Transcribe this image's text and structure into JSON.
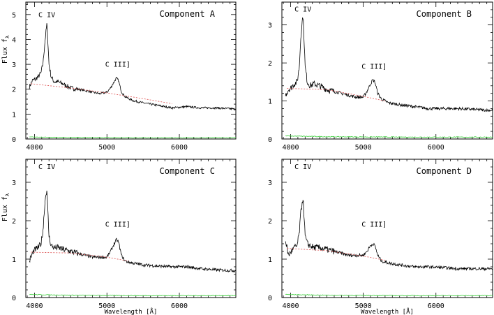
{
  "chart_data": [
    {
      "type": "line",
      "title": "Component A",
      "xlabel": "",
      "ylabel": "Flux f",
      "ylabel_sub": "λ",
      "xlim": [
        3880,
        6780
      ],
      "ylim": [
        0,
        5.5
      ],
      "xticks": [
        4000,
        5000,
        6000
      ],
      "yticks": [
        0,
        1,
        2,
        3,
        4,
        5
      ],
      "annotations": [
        {
          "text": "C IV",
          "x": 4170,
          "y": 4.9
        },
        {
          "text": "C III]",
          "x": 5150,
          "y": 2.9
        }
      ],
      "series": [
        {
          "role": "spectrum",
          "color": "#000000",
          "x": [
            3930,
            3970,
            4010,
            4050,
            4090,
            4120,
            4140,
            4160,
            4170,
            4180,
            4200,
            4230,
            4270,
            4320,
            4400,
            4500,
            4600,
            4700,
            4800,
            4900,
            5000,
            5050,
            5100,
            5130,
            5160,
            5200,
            5250,
            5350,
            5500,
            5700,
            5900,
            6100,
            6300,
            6500,
            6780
          ],
          "y": [
            2.1,
            2.35,
            2.4,
            2.5,
            2.65,
            3.1,
            3.8,
            4.35,
            4.6,
            4.2,
            3.0,
            2.5,
            2.3,
            2.3,
            2.2,
            2.05,
            2.0,
            1.95,
            1.88,
            1.82,
            1.88,
            2.05,
            2.3,
            2.45,
            2.35,
            1.9,
            1.7,
            1.55,
            1.45,
            1.35,
            1.25,
            1.3,
            1.25,
            1.25,
            1.2
          ]
        },
        {
          "role": "continuum",
          "color": "#e06060",
          "dash": true,
          "x": [
            3950,
            4500,
            5000,
            5500,
            5900
          ],
          "y": [
            2.22,
            2.05,
            1.85,
            1.62,
            1.42
          ]
        },
        {
          "role": "error",
          "color": "#33cc33",
          "x": [
            3930,
            4500,
            5500,
            6780
          ],
          "y": [
            0.08,
            0.06,
            0.05,
            0.05
          ]
        }
      ]
    },
    {
      "type": "line",
      "title": "Component B",
      "xlabel": "",
      "ylabel": "",
      "xlim": [
        3880,
        6780
      ],
      "ylim": [
        0,
        3.6
      ],
      "xticks": [
        4000,
        5000,
        6000
      ],
      "yticks": [
        0,
        1,
        2,
        3
      ],
      "annotations": [
        {
          "text": "C IV",
          "x": 4170,
          "y": 3.35
        },
        {
          "text": "C III]",
          "x": 5150,
          "y": 1.85
        }
      ],
      "series": [
        {
          "role": "spectrum",
          "color": "#000000",
          "x": [
            3930,
            3970,
            4010,
            4050,
            4090,
            4120,
            4140,
            4160,
            4170,
            4180,
            4200,
            4230,
            4270,
            4320,
            4400,
            4500,
            4600,
            4700,
            4800,
            4900,
            5000,
            5050,
            5100,
            5130,
            5160,
            5200,
            5250,
            5350,
            5500,
            5700,
            5900,
            6100,
            6300,
            6500,
            6780
          ],
          "y": [
            1.15,
            1.3,
            1.35,
            1.45,
            1.5,
            1.9,
            2.7,
            3.1,
            3.25,
            2.9,
            1.9,
            1.5,
            1.4,
            1.45,
            1.4,
            1.3,
            1.25,
            1.2,
            1.15,
            1.1,
            1.1,
            1.25,
            1.45,
            1.55,
            1.5,
            1.2,
            1.05,
            0.95,
            0.9,
            0.85,
            0.8,
            0.8,
            0.8,
            0.78,
            0.75
          ]
        },
        {
          "role": "continuum",
          "color": "#e06060",
          "dash": true,
          "x": [
            3950,
            4500,
            5000,
            5300
          ],
          "y": [
            1.33,
            1.3,
            1.12,
            1.0
          ]
        },
        {
          "role": "error",
          "color": "#33cc33",
          "x": [
            3930,
            4500,
            5500,
            6780
          ],
          "y": [
            0.08,
            0.06,
            0.05,
            0.05
          ]
        }
      ]
    },
    {
      "type": "line",
      "title": "Component C",
      "xlabel": "",
      "ylabel": "Flux f",
      "ylabel_sub": "λ",
      "xlim": [
        3880,
        6780
      ],
      "ylim": [
        0,
        3.6
      ],
      "xticks": [
        4000,
        5000,
        6000
      ],
      "yticks": [
        0,
        1,
        2,
        3
      ],
      "annotations": [
        {
          "text": "C IV",
          "x": 4170,
          "y": 3.35
        },
        {
          "text": "C III]",
          "x": 5150,
          "y": 1.85
        }
      ],
      "series": [
        {
          "role": "spectrum",
          "color": "#000000",
          "x": [
            3930,
            3970,
            4010,
            4050,
            4090,
            4120,
            4140,
            4160,
            4170,
            4180,
            4200,
            4230,
            4270,
            4320,
            4400,
            4500,
            4600,
            4700,
            4800,
            4900,
            5000,
            5050,
            5100,
            5130,
            5160,
            5200,
            5250,
            5350,
            5500,
            5700,
            5900,
            6100,
            6300,
            6500,
            6780
          ],
          "y": [
            0.95,
            1.15,
            1.25,
            1.3,
            1.4,
            1.8,
            2.4,
            2.75,
            2.8,
            2.4,
            1.6,
            1.35,
            1.3,
            1.3,
            1.25,
            1.2,
            1.15,
            1.1,
            1.05,
            1.05,
            1.05,
            1.2,
            1.4,
            1.5,
            1.45,
            1.1,
            0.95,
            0.9,
            0.85,
            0.82,
            0.8,
            0.8,
            0.75,
            0.72,
            0.7
          ]
        },
        {
          "role": "continuum",
          "color": "#e06060",
          "dash": true,
          "x": [
            3950,
            4500,
            5000,
            5300
          ],
          "y": [
            1.18,
            1.16,
            1.05,
            0.95
          ]
        },
        {
          "role": "error",
          "color": "#33cc33",
          "x": [
            3930,
            4500,
            5500,
            6780
          ],
          "y": [
            0.08,
            0.06,
            0.05,
            0.05
          ]
        }
      ]
    },
    {
      "type": "line",
      "title": "Component D",
      "xlabel": "Wavelength [Å]",
      "ylabel": "",
      "xlim": [
        3880,
        6780
      ],
      "ylim": [
        0,
        3.6
      ],
      "xticks": [
        4000,
        5000,
        6000
      ],
      "yticks": [
        0,
        1,
        2,
        3
      ],
      "annotations": [
        {
          "text": "C IV",
          "x": 4170,
          "y": 3.35
        },
        {
          "text": "C III]",
          "x": 5150,
          "y": 1.85
        }
      ],
      "series": [
        {
          "role": "spectrum",
          "color": "#000000",
          "x": [
            3930,
            3970,
            4010,
            4050,
            4090,
            4120,
            4140,
            4160,
            4170,
            4180,
            4200,
            4230,
            4270,
            4320,
            4400,
            4500,
            4600,
            4700,
            4800,
            4900,
            5000,
            5050,
            5100,
            5130,
            5160,
            5200,
            5250,
            5350,
            5500,
            5700,
            5900,
            6100,
            6300,
            6500,
            6780
          ],
          "y": [
            1.5,
            1.1,
            1.2,
            1.3,
            1.35,
            1.7,
            2.2,
            2.5,
            2.6,
            2.3,
            1.6,
            1.4,
            1.35,
            1.3,
            1.3,
            1.25,
            1.2,
            1.15,
            1.1,
            1.1,
            1.1,
            1.2,
            1.35,
            1.4,
            1.35,
            1.1,
            0.95,
            0.9,
            0.85,
            0.8,
            0.8,
            0.78,
            0.75,
            0.75,
            0.75
          ]
        },
        {
          "role": "continuum",
          "color": "#e06060",
          "dash": true,
          "x": [
            3950,
            4500,
            5000,
            5300
          ],
          "y": [
            1.28,
            1.22,
            1.08,
            0.97
          ]
        },
        {
          "role": "error",
          "color": "#33cc33",
          "x": [
            3930,
            4500,
            5500,
            6780
          ],
          "y": [
            0.08,
            0.06,
            0.05,
            0.05
          ]
        }
      ]
    }
  ],
  "xaxis_label": "Wavelength [Å]"
}
